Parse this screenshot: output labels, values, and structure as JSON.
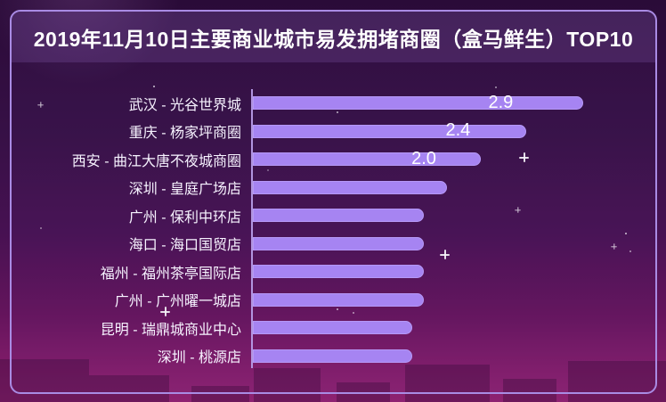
{
  "window": {
    "title": "2019年11月10日主要商业城市易发拥堵商圈（盒马鲜生）TOP10"
  },
  "colors": {
    "bar_fill": "#a684f2",
    "frame_border": "#a98be4",
    "axis_line": "#b79ce8",
    "title_text": "#ffffff",
    "label_text": "#f7f3ff",
    "value_text": "#ffffff",
    "background_top": "#2a0b38",
    "background_bottom": "#8e2272"
  },
  "chart_data": {
    "type": "bar",
    "orientation": "horizontal",
    "title": "2019年11月10日主要商业城市易发拥堵商圈（盒马鲜生）TOP10",
    "xlabel": "",
    "ylabel": "",
    "xlim": [
      0,
      3.5
    ],
    "grid": false,
    "legend": "none",
    "categories": [
      "武汉 - 光谷世界城",
      "重庆 - 杨家坪商圈",
      "西安 - 曲江大唐不夜城商圈",
      "深圳 - 皇庭广场店",
      "广州 - 保利中环店",
      "海口 - 海口国贸店",
      "福州 - 福州茶亭国际店",
      "广州 - 广州曜一城店",
      "昆明 - 瑞鼎城商业中心",
      "深圳 - 桃源店"
    ],
    "values": [
      2.9,
      2.4,
      2.0,
      1.7,
      1.5,
      1.5,
      1.5,
      1.5,
      1.4,
      1.4
    ],
    "value_labels": [
      "2.9",
      "2.4",
      "2.0",
      "",
      "",
      "",
      "",
      "",
      "",
      ""
    ],
    "bar_color": "#a684f2"
  }
}
